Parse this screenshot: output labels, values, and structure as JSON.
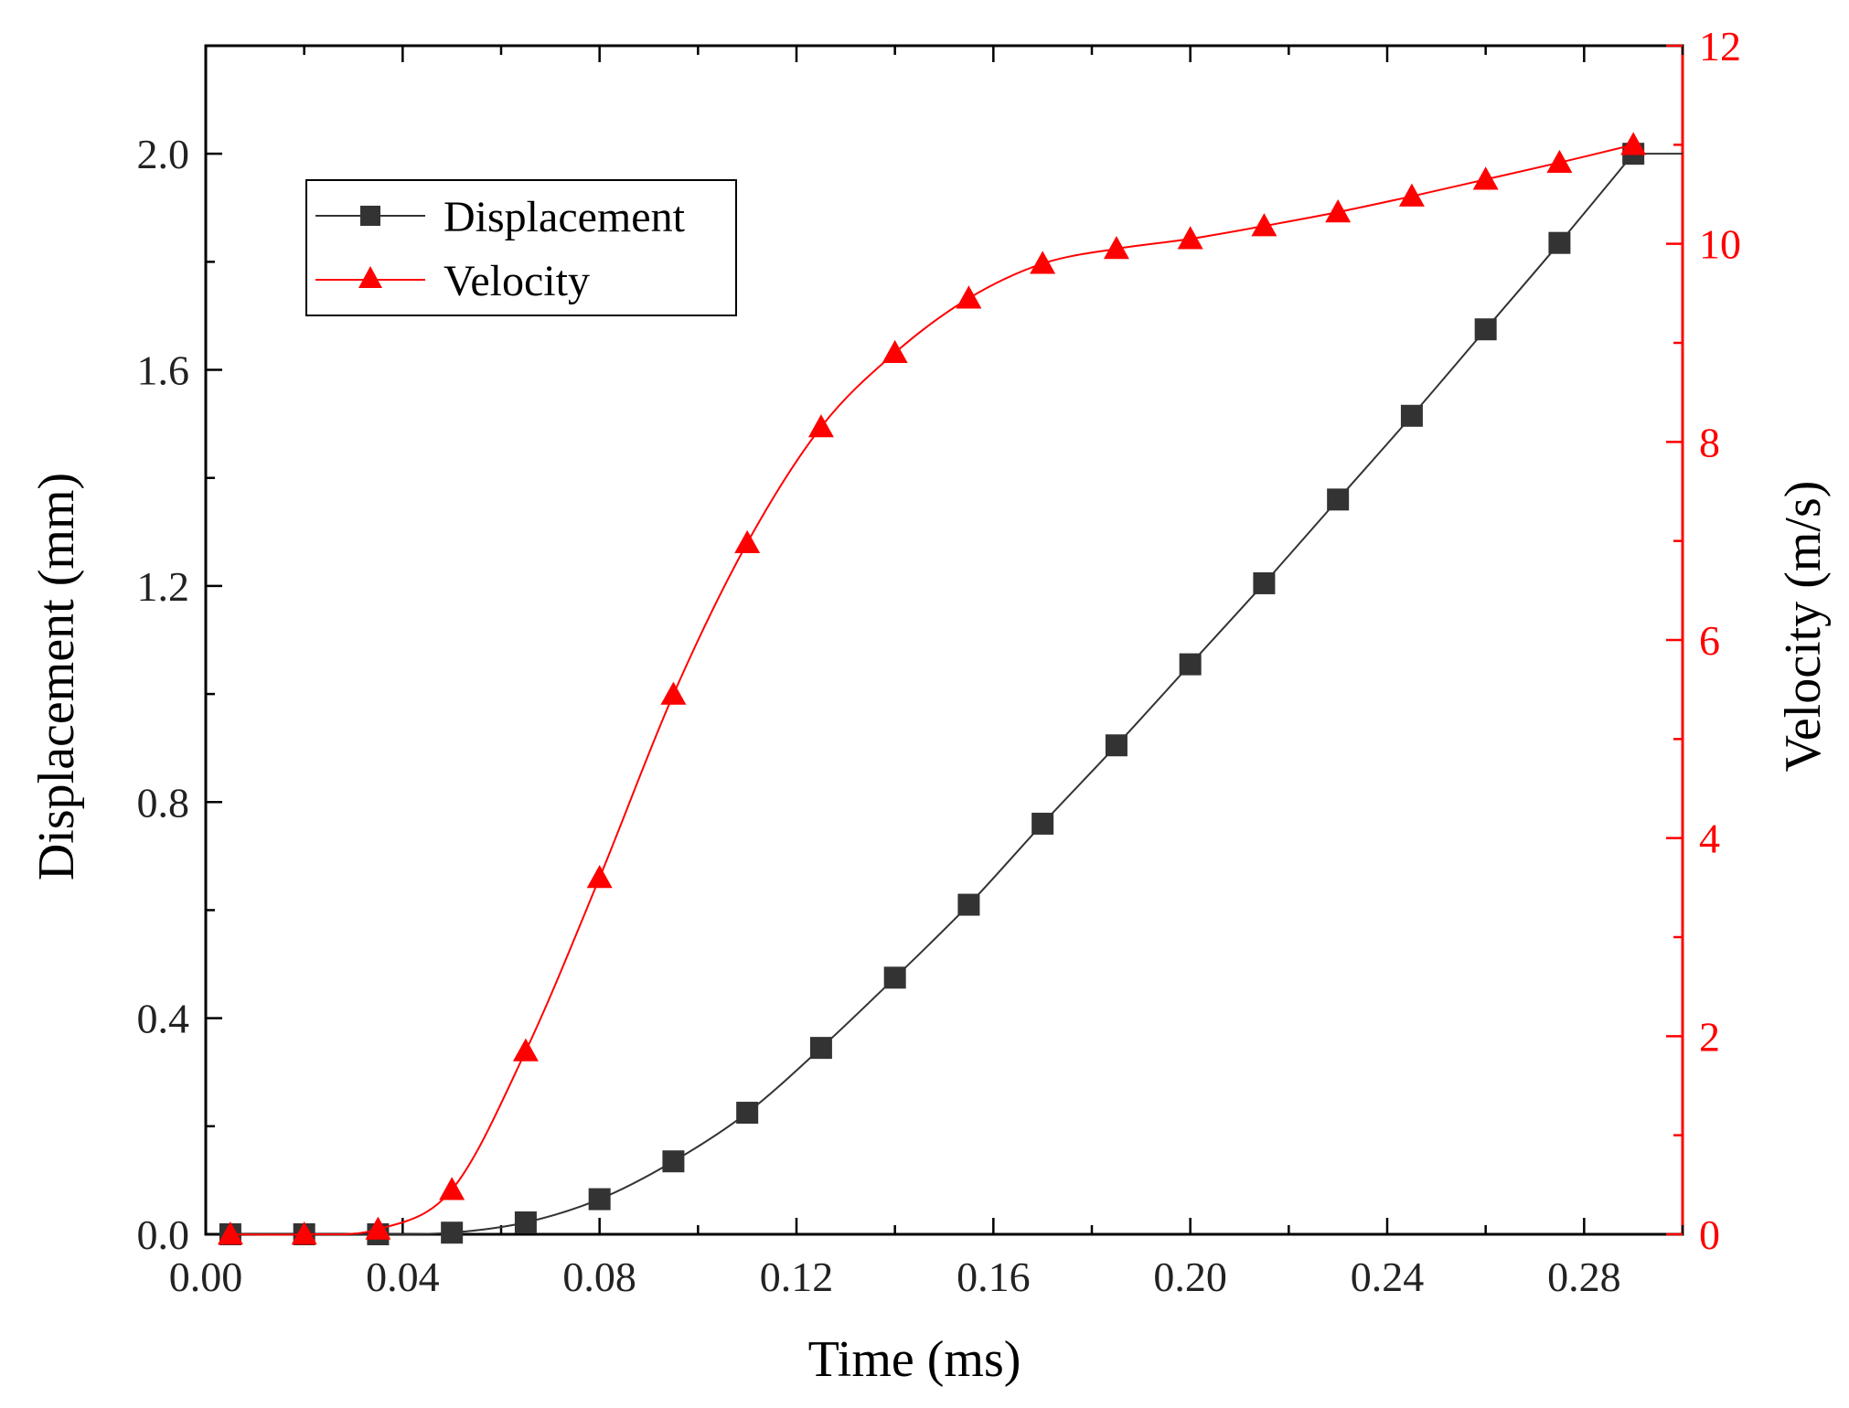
{
  "chart_data": {
    "type": "line",
    "xlabel": "Time (ms)",
    "ylabel": "Displacement (mm)",
    "y2label": "Velocity (m/s)",
    "xlim": [
      0.0,
      0.3
    ],
    "ylim": [
      0.0,
      2.2
    ],
    "y2lim": [
      0,
      12
    ],
    "xticks": [
      "0.00",
      "0.04",
      "0.08",
      "0.12",
      "0.16",
      "0.20",
      "0.24",
      "0.28"
    ],
    "yticks": [
      "0.0",
      "0.4",
      "0.8",
      "1.2",
      "1.6",
      "2.0"
    ],
    "y2ticks": [
      "0",
      "2",
      "4",
      "6",
      "8",
      "10",
      "12"
    ],
    "legend_position": "top-left",
    "colors": {
      "displacement": "#333333",
      "velocity": "#ff0000",
      "axis": "#000000",
      "right_axis": "#ff0000"
    },
    "series": [
      {
        "name": "Displacement",
        "axis": "left",
        "marker": "square",
        "color": "#333333",
        "x": [
          0.005,
          0.02,
          0.035,
          0.05,
          0.065,
          0.08,
          0.095,
          0.11,
          0.125,
          0.14,
          0.155,
          0.17,
          0.185,
          0.2,
          0.215,
          0.23,
          0.245,
          0.26,
          0.275,
          0.29
        ],
        "values": [
          0.0,
          0.0,
          0.0,
          0.003,
          0.022,
          0.065,
          0.135,
          0.225,
          0.345,
          0.475,
          0.61,
          0.76,
          0.905,
          1.055,
          1.205,
          1.36,
          1.515,
          1.675,
          1.835,
          2.0
        ]
      },
      {
        "name": "Velocity",
        "axis": "right",
        "marker": "triangle",
        "color": "#ff0000",
        "x": [
          0.005,
          0.02,
          0.035,
          0.05,
          0.065,
          0.08,
          0.095,
          0.11,
          0.125,
          0.14,
          0.155,
          0.17,
          0.185,
          0.2,
          0.215,
          0.23,
          0.245,
          0.26,
          0.275,
          0.29
        ],
        "values": [
          0.0,
          0.0,
          0.05,
          0.45,
          1.85,
          3.6,
          5.45,
          6.98,
          8.15,
          8.9,
          9.45,
          9.8,
          9.95,
          10.05,
          10.18,
          10.32,
          10.48,
          10.65,
          10.82,
          11.0
        ]
      }
    ]
  }
}
